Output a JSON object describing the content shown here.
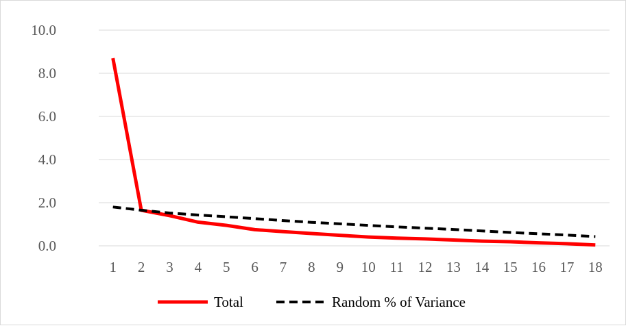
{
  "chart_data": {
    "type": "line",
    "categories": [
      "1",
      "2",
      "3",
      "4",
      "5",
      "6",
      "7",
      "8",
      "9",
      "10",
      "11",
      "12",
      "13",
      "14",
      "15",
      "16",
      "17",
      "18"
    ],
    "series": [
      {
        "name": "Total",
        "color": "#ff0000",
        "style": "solid",
        "values": [
          8.7,
          1.65,
          1.4,
          1.1,
          0.95,
          0.75,
          0.66,
          0.57,
          0.49,
          0.41,
          0.36,
          0.32,
          0.27,
          0.22,
          0.19,
          0.14,
          0.1,
          0.04
        ]
      },
      {
        "name": "Random % of Variance",
        "color": "#000000",
        "style": "dashed",
        "values": [
          1.8,
          1.65,
          1.52,
          1.43,
          1.35,
          1.26,
          1.17,
          1.09,
          1.02,
          0.95,
          0.88,
          0.82,
          0.76,
          0.69,
          0.62,
          0.56,
          0.5,
          0.43
        ]
      }
    ],
    "yticks": [
      "0.0",
      "2.0",
      "4.0",
      "6.0",
      "8.0",
      "10.0"
    ],
    "ylim": [
      0,
      10
    ],
    "grid": true,
    "legend_position": "bottom"
  }
}
